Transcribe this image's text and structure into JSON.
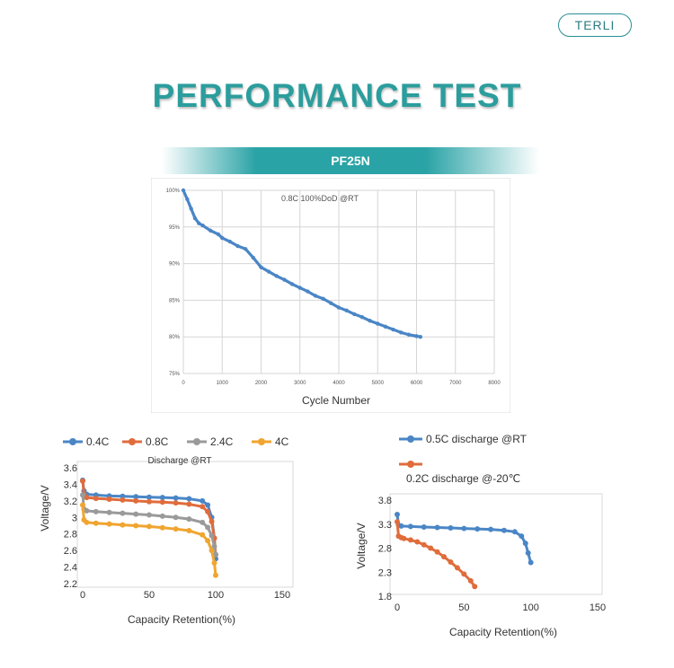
{
  "brand": {
    "name": "TERLI"
  },
  "header": {
    "title": "PERFORMANCE TEST",
    "model": "PF25N"
  },
  "colors": {
    "accent": "#2aa3a6",
    "blue": "#4a86c6",
    "orange": "#e06c3c",
    "gray": "#9a9a9a",
    "gold": "#f0a530"
  },
  "chart_data": [
    {
      "type": "scatter",
      "annotation": "0.8C 100%DoD @RT",
      "xlabel": "Cycle Number",
      "ylabel": "",
      "xlim": [
        0,
        8000
      ],
      "ylim": [
        75,
        100
      ],
      "x_ticks": [
        "0",
        "1000",
        "2000",
        "3000",
        "4000",
        "5000",
        "6000",
        "7000",
        "8000"
      ],
      "y_ticks": [
        "75%",
        "80%",
        "85%",
        "90%",
        "95%",
        "100%"
      ],
      "x": [
        0,
        100,
        200,
        300,
        400,
        500,
        700,
        900,
        1000,
        1200,
        1400,
        1600,
        1800,
        2000,
        2200,
        2400,
        2600,
        2800,
        3000,
        3200,
        3400,
        3600,
        3800,
        4000,
        4200,
        4400,
        4600,
        4800,
        5000,
        5200,
        5400,
        5600,
        5800,
        6000,
        6100
      ],
      "y": [
        100,
        98.8,
        97.5,
        96.2,
        95.5,
        95.2,
        94.5,
        94.0,
        93.5,
        93.0,
        92.4,
        92.0,
        90.8,
        89.5,
        88.9,
        88.3,
        87.8,
        87.2,
        86.7,
        86.2,
        85.6,
        85.2,
        84.6,
        84.0,
        83.6,
        83.1,
        82.7,
        82.2,
        81.8,
        81.4,
        81.0,
        80.6,
        80.3,
        80.1,
        80.0
      ]
    },
    {
      "type": "line",
      "title": "Discharge @RT",
      "xlabel": "Capacity Retention(%)",
      "ylabel": "Voltage/V",
      "xlim": [
        0,
        150
      ],
      "ylim": [
        2.2,
        3.6
      ],
      "x_ticks": [
        "0",
        "50",
        "100",
        "150"
      ],
      "y_ticks": [
        "2.2",
        "2.4",
        "2.6",
        "2.8",
        "3",
        "3.2",
        "3.4",
        "3.6"
      ],
      "legend": "top",
      "series": [
        {
          "name": "0.4C",
          "color": "#4a86c6",
          "x": [
            0,
            1,
            3,
            10,
            20,
            30,
            40,
            50,
            60,
            70,
            80,
            90,
            94,
            97,
            99,
            100
          ],
          "y": [
            3.45,
            3.32,
            3.28,
            3.27,
            3.26,
            3.255,
            3.25,
            3.245,
            3.24,
            3.235,
            3.225,
            3.2,
            3.15,
            3.0,
            2.75,
            2.5
          ]
        },
        {
          "name": "0.8C",
          "color": "#e06c3c",
          "x": [
            0,
            1,
            3,
            10,
            20,
            30,
            40,
            50,
            60,
            70,
            80,
            90,
            94,
            97,
            99,
            100
          ],
          "y": [
            3.44,
            3.28,
            3.24,
            3.23,
            3.22,
            3.21,
            3.2,
            3.19,
            3.185,
            3.175,
            3.16,
            3.13,
            3.07,
            2.95,
            2.75,
            2.55
          ]
        },
        {
          "name": "2.4C",
          "color": "#9a9a9a",
          "x": [
            0,
            1,
            3,
            10,
            20,
            30,
            40,
            50,
            60,
            70,
            80,
            90,
            94,
            97,
            99,
            100
          ],
          "y": [
            3.27,
            3.1,
            3.08,
            3.07,
            3.06,
            3.05,
            3.04,
            3.03,
            3.015,
            3.0,
            2.98,
            2.94,
            2.88,
            2.78,
            2.65,
            2.55
          ]
        },
        {
          "name": "4C",
          "color": "#f0a530",
          "x": [
            0,
            1,
            3,
            10,
            20,
            30,
            40,
            50,
            60,
            70,
            80,
            90,
            94,
            97,
            99,
            100
          ],
          "y": [
            3.15,
            2.97,
            2.94,
            2.93,
            2.92,
            2.91,
            2.9,
            2.89,
            2.875,
            2.86,
            2.84,
            2.79,
            2.72,
            2.6,
            2.45,
            2.3
          ]
        }
      ]
    },
    {
      "type": "line",
      "title": "",
      "xlabel": "Capacity Retention(%)",
      "ylabel": "Voltage/V",
      "xlim": [
        0,
        150
      ],
      "ylim": [
        1.8,
        3.8
      ],
      "x_ticks": [
        "0",
        "50",
        "100",
        "150"
      ],
      "y_ticks": [
        "1.8",
        "2.3",
        "2.8",
        "3.3",
        "3.8"
      ],
      "legend": "top-left",
      "series": [
        {
          "name": "0.5C discharge @RT",
          "color": "#4a86c6",
          "x": [
            0,
            1,
            3,
            10,
            20,
            30,
            40,
            50,
            60,
            70,
            80,
            88,
            93,
            96,
            98,
            100
          ],
          "y": [
            3.5,
            3.28,
            3.26,
            3.25,
            3.24,
            3.23,
            3.22,
            3.21,
            3.2,
            3.19,
            3.17,
            3.14,
            3.05,
            2.9,
            2.7,
            2.5
          ]
        },
        {
          "name": "0.2C discharge @-20℃",
          "color": "#e06c3c",
          "x": [
            0,
            1,
            3,
            5,
            10,
            15,
            20,
            25,
            30,
            35,
            40,
            45,
            50,
            55,
            58
          ],
          "y": [
            3.35,
            3.05,
            3.02,
            3.0,
            2.97,
            2.93,
            2.87,
            2.8,
            2.72,
            2.62,
            2.51,
            2.39,
            2.26,
            2.12,
            2.0
          ]
        }
      ]
    }
  ]
}
